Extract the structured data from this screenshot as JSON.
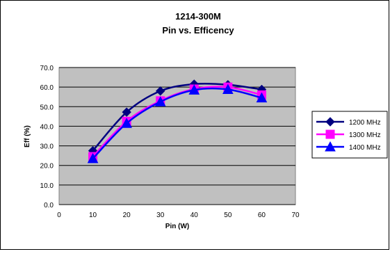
{
  "colors": {
    "plot_background": "#c0c0c0",
    "chart_background": "#ffffff",
    "gridline": "#000000"
  },
  "chart_data": {
    "type": "line",
    "title": "1214-300M",
    "subtitle": "Pin vs. Efficency",
    "xlabel": "Pin (W)",
    "ylabel": "Eff (%)",
    "xlim": [
      0,
      70
    ],
    "ylim": [
      0,
      70
    ],
    "x_ticks": [
      "0",
      "10",
      "20",
      "30",
      "40",
      "50",
      "60",
      "70"
    ],
    "y_ticks": [
      "0.0",
      "10.0",
      "20.0",
      "30.0",
      "40.0",
      "50.0",
      "60.0",
      "70.0"
    ],
    "grid": true,
    "smooth_lines": true,
    "legend_position": "right",
    "series": [
      {
        "name": "1200 MHz",
        "color": "#000080",
        "marker": "diamond",
        "x": [
          10,
          20,
          30,
          40,
          50,
          60
        ],
        "y": [
          27.5,
          47.2,
          58.0,
          61.5,
          61.2,
          58.8
        ]
      },
      {
        "name": "1300 MHz",
        "color": "#ff00ff",
        "marker": "square",
        "x": [
          10,
          20,
          30,
          40,
          50,
          60
        ],
        "y": [
          24.5,
          42.5,
          53.0,
          59.0,
          60.0,
          56.0
        ]
      },
      {
        "name": "1400 MHz",
        "color": "#0000ff",
        "marker": "triangle",
        "x": [
          10,
          20,
          30,
          40,
          50,
          60
        ],
        "y": [
          23.5,
          41.5,
          52.5,
          58.5,
          58.8,
          54.5
        ]
      }
    ]
  }
}
